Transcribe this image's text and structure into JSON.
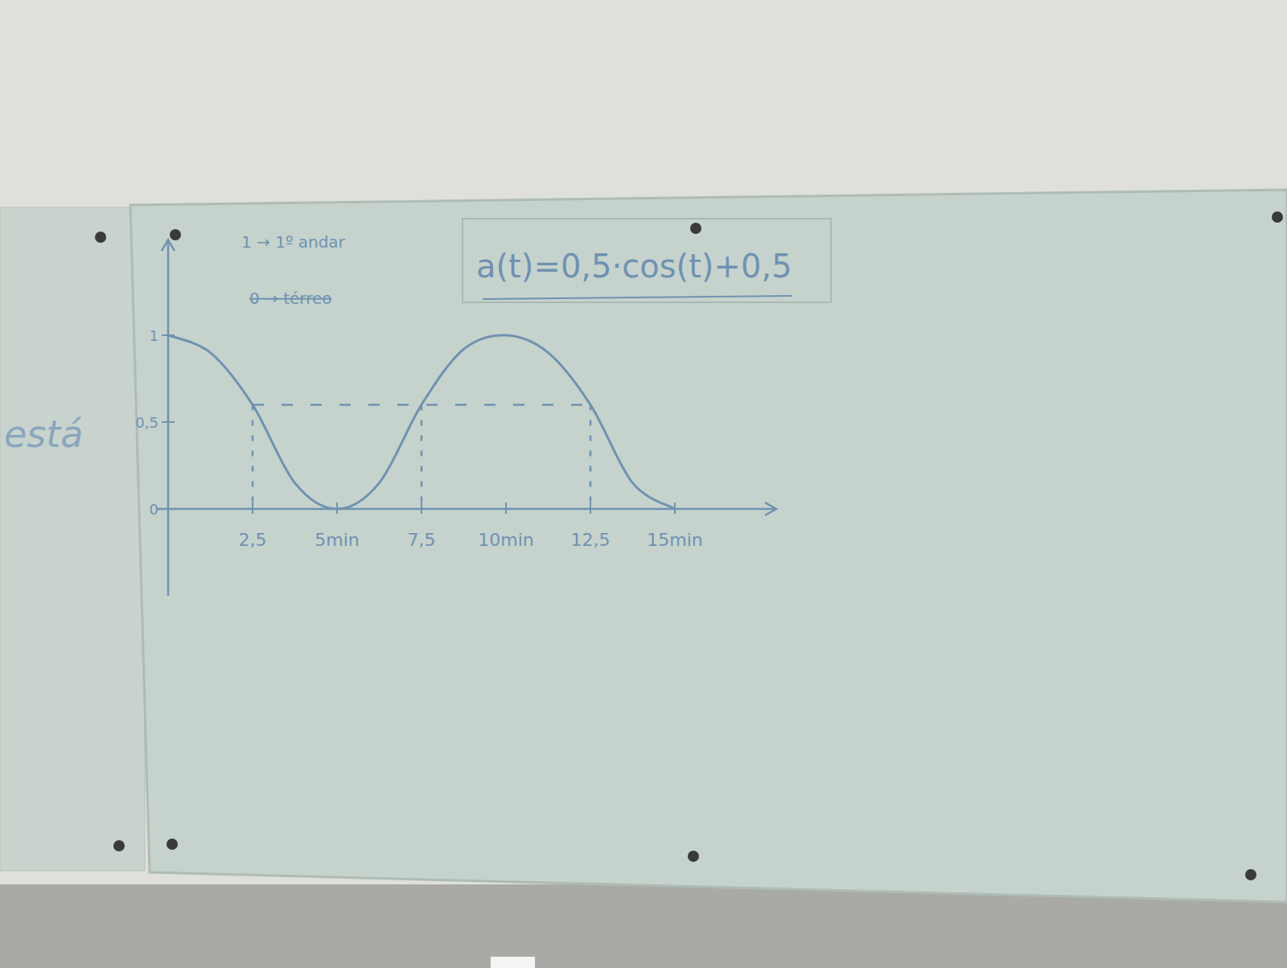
{
  "chart_data": {
    "type": "line",
    "formula": "a(t)=0,5·cos(t)+0,5",
    "annotations": [
      "1 → 1º andar",
      "0 → térreo"
    ],
    "side_text": "está",
    "x": [
      0,
      1.25,
      2.5,
      3.75,
      5,
      6.25,
      7.5,
      8.75,
      10,
      11.25,
      12.5,
      13.75,
      15
    ],
    "series": [
      {
        "color": "#6f92b2",
        "values": [
          1,
          0.9,
          0.6,
          0.15,
          0,
          0.15,
          0.6,
          0.92,
          1,
          0.9,
          0.6,
          0.15,
          0
        ]
      }
    ],
    "xlim": [
      0,
      18
    ],
    "xticks": [
      {
        "value": 2.5,
        "label": "2,5"
      },
      {
        "value": 5,
        "label": "5min"
      },
      {
        "value": 7.5,
        "label": "7,5"
      },
      {
        "value": 10,
        "label": "10min"
      },
      {
        "value": 12.5,
        "label": "12,5"
      },
      {
        "value": 15,
        "label": "15min"
      }
    ],
    "ylim": [
      -0.5,
      1.55
    ],
    "yticks": [
      0,
      {
        "value": 0.5,
        "label": "0,5"
      },
      1
    ],
    "guides": {
      "y": 0.6,
      "x": [
        2.5,
        7.5,
        12.5
      ]
    },
    "grid": false
  }
}
